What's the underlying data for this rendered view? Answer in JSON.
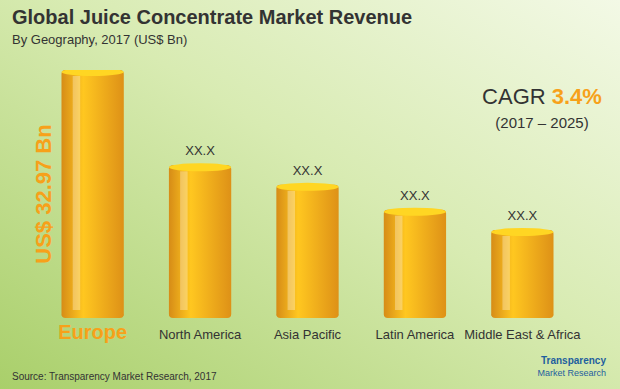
{
  "chart_data": {
    "type": "bar",
    "title": "Global Juice Concentrate Market Revenue",
    "subtitle": "By Geography, 2017 (US$ Bn)",
    "categories": [
      "Europe",
      "North America",
      "Asia Pacific",
      "Latin America",
      "Middle East & Africa"
    ],
    "values": [
      32.97,
      20.3,
      17.7,
      14.4,
      11.7
    ],
    "value_labels": [
      "US$ 32.97 Bn",
      "XX.X",
      "XX.X",
      "XX.X",
      "XX.X"
    ],
    "data_labels": true,
    "color": "#f7a11a",
    "tick_labels": false,
    "grid": false,
    "annotations": [
      "CAGR",
      "3.4%",
      "(2017 – 2025)"
    ],
    "source": "Source: Transparency Market Research, 2017",
    "logo": "Transparency Market Research"
  }
}
